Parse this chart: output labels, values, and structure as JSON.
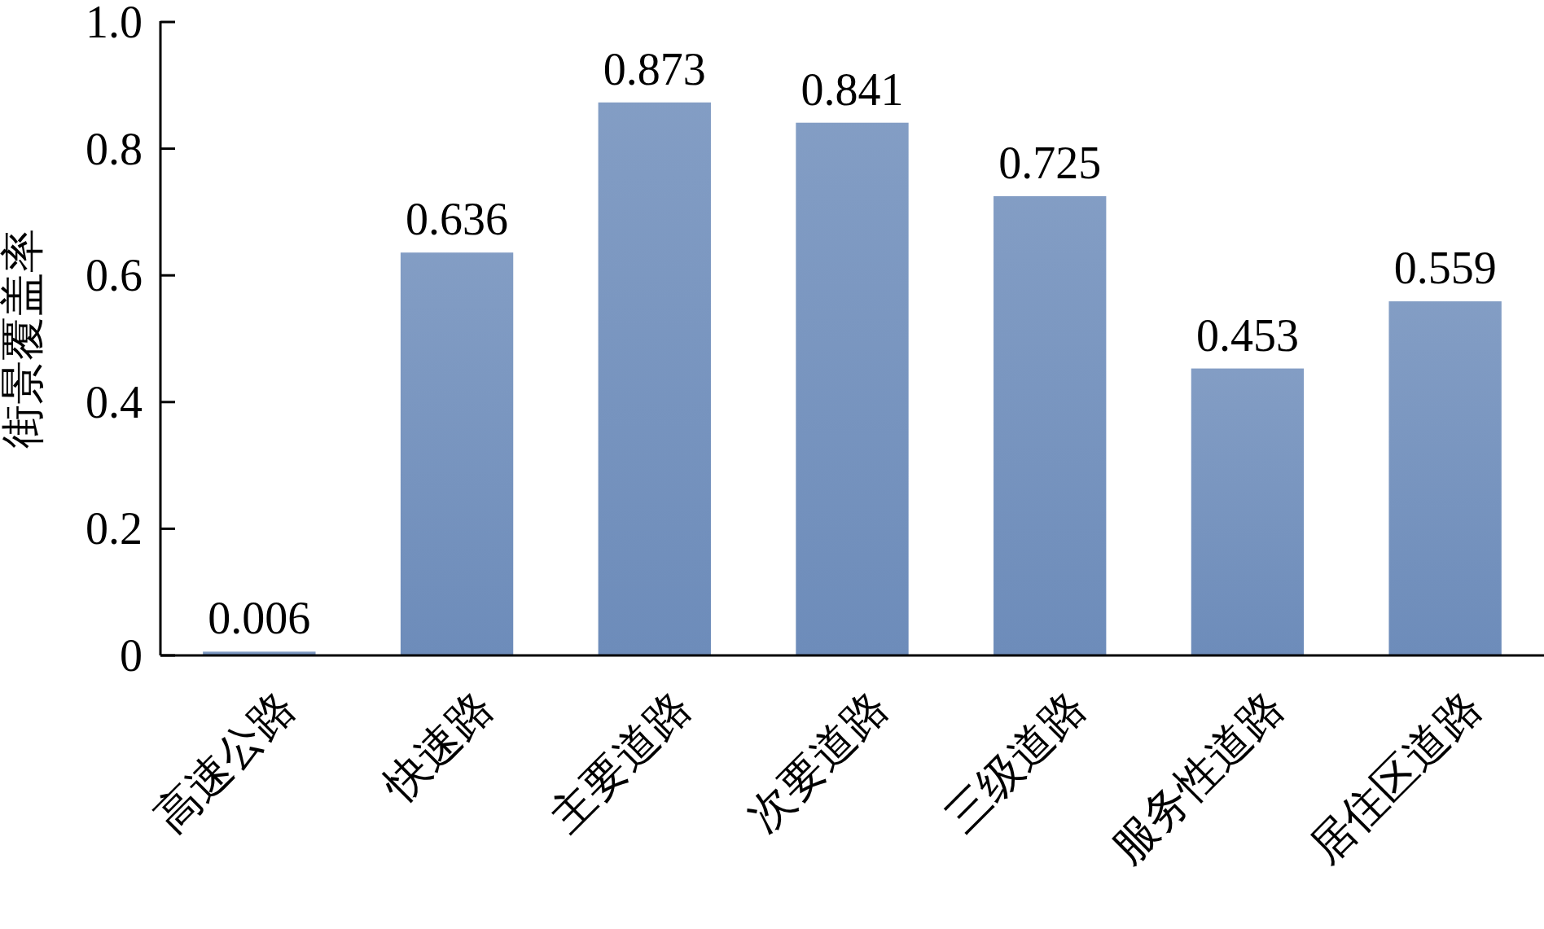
{
  "chart_data": {
    "type": "bar",
    "ylabel": "街景覆盖率",
    "categories": [
      "高速公路",
      "快速路",
      "主要道路",
      "次要道路",
      "三级道路",
      "服务性道路",
      "居住区道路"
    ],
    "values": [
      0.006,
      0.636,
      0.873,
      0.841,
      0.725,
      0.453,
      0.559
    ],
    "color": "#6d8cba",
    "ylim": [
      0,
      1
    ],
    "yticks": [
      {
        "value": 0,
        "label": "0"
      },
      0.2,
      0.4,
      0.6,
      0.8,
      {
        "value": 1,
        "label": "1.0"
      }
    ],
    "data_labels": true,
    "grid": false
  }
}
